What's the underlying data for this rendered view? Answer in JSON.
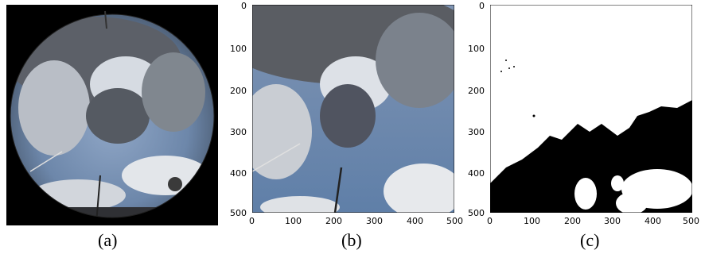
{
  "captions": [
    "(a)",
    "(b)",
    "(c)"
  ],
  "axis": {
    "x_ticks": [
      "0",
      "100",
      "200",
      "300",
      "400",
      "500"
    ],
    "y_ticks": [
      "0",
      "100",
      "200",
      "300",
      "400",
      "500"
    ]
  },
  "colors": {
    "sky": "#6f8fb6",
    "cloud_dark": "#4d5158",
    "cloud_light": "#e8eaee",
    "mask": "#000000"
  }
}
